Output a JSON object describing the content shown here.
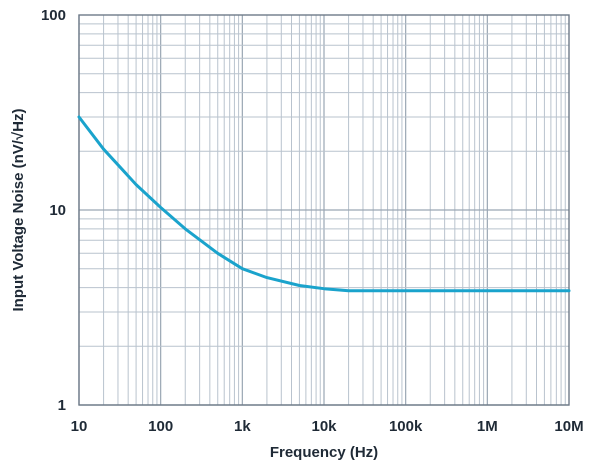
{
  "chart_data": {
    "type": "line",
    "title": "",
    "xlabel": "Frequency (Hz)",
    "ylabel": "Input Voltage Noise (nV/√Hz)",
    "x_scale": "log",
    "y_scale": "log",
    "xlim": [
      10,
      10000000
    ],
    "ylim": [
      1,
      100
    ],
    "grid": true,
    "x_ticks": [
      {
        "value": 10,
        "label": "10"
      },
      {
        "value": 100,
        "label": "100"
      },
      {
        "value": 1000,
        "label": "1k"
      },
      {
        "value": 10000,
        "label": "10k"
      },
      {
        "value": 100000,
        "label": "100k"
      },
      {
        "value": 1000000,
        "label": "1M"
      },
      {
        "value": 10000000,
        "label": "10M"
      }
    ],
    "y_ticks": [
      {
        "value": 1,
        "label": "1"
      },
      {
        "value": 10,
        "label": "10"
      },
      {
        "value": 100,
        "label": "100"
      }
    ],
    "series": [
      {
        "color": "#1aa3cc",
        "x": [
          10,
          20,
          50,
          100,
          200,
          500,
          1000,
          2000,
          5000,
          10000,
          20000,
          50000,
          100000,
          1000000,
          10000000
        ],
        "y": [
          30,
          20.5,
          13.5,
          10.3,
          8.0,
          6.0,
          5.0,
          4.5,
          4.1,
          3.95,
          3.85,
          3.85,
          3.85,
          3.85,
          3.85
        ]
      }
    ]
  }
}
